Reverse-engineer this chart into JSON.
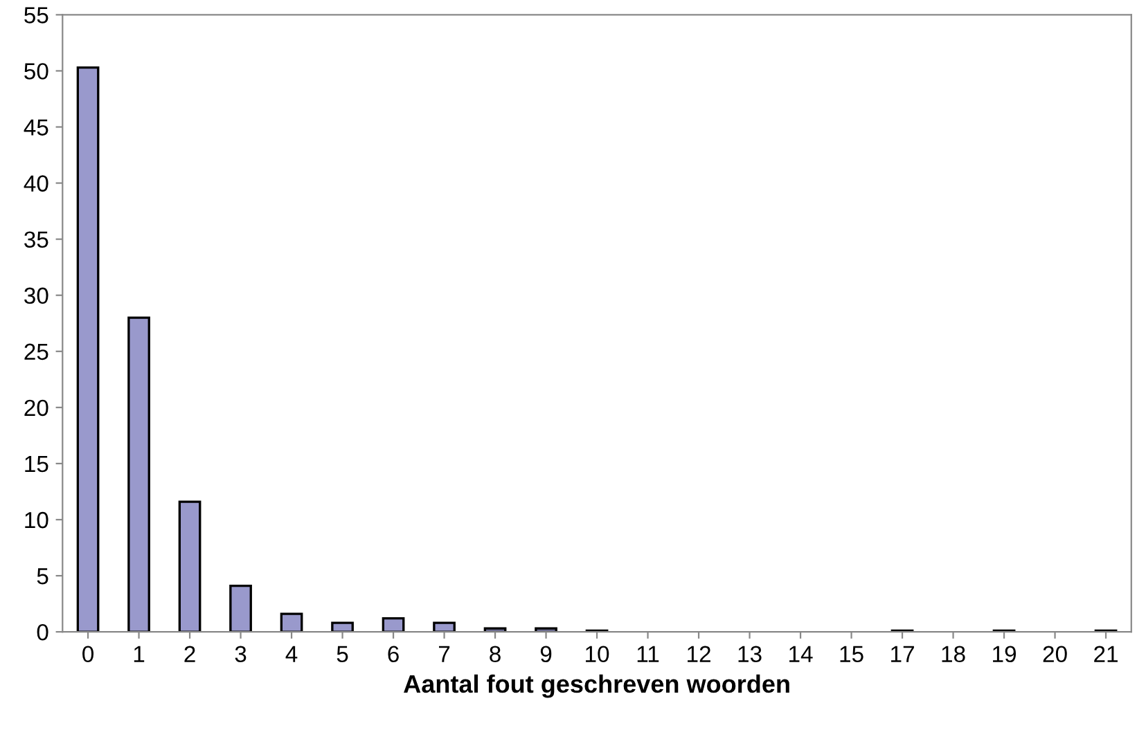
{
  "chart_data": {
    "type": "bar",
    "xlabel": "Aantal fout geschreven woorden",
    "categories": [
      "0",
      "1",
      "2",
      "3",
      "4",
      "5",
      "6",
      "7",
      "8",
      "9",
      "10",
      "11",
      "12",
      "13",
      "14",
      "15",
      "17",
      "18",
      "19",
      "20",
      "21"
    ],
    "values": [
      50.3,
      28,
      11.6,
      4.1,
      1.6,
      0.8,
      1.2,
      0.8,
      0.3,
      0.3,
      0.1,
      0,
      0,
      0,
      0,
      0,
      0.1,
      0,
      0.1,
      0,
      0.1
    ],
    "color": "#9999cc",
    "ylim": [
      0,
      55
    ],
    "yticks": [
      0,
      5,
      10,
      15,
      20,
      25,
      30,
      35,
      40,
      45,
      50,
      55
    ],
    "grid": false,
    "legend": false
  }
}
